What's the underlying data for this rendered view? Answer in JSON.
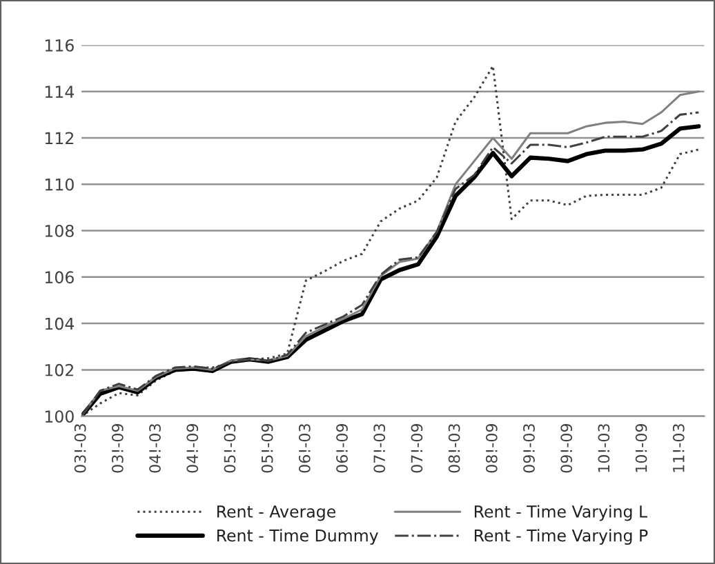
{
  "chart_data": {
    "type": "line",
    "categories": [
      "03!-03",
      null,
      "03!-09",
      null,
      "04!-03",
      null,
      "04!-09",
      null,
      "05!-03",
      null,
      "05!-09",
      null,
      "06!-03",
      null,
      "06!-09",
      null,
      "07!-03",
      null,
      "07!-09",
      null,
      "08!-03",
      null,
      "08!-09",
      null,
      "09!-03",
      null,
      "09!-09",
      null,
      "10!-03",
      null,
      "10!-09",
      null,
      "11!-03",
      null
    ],
    "series": [
      {
        "name": "Rent - Average",
        "color": "#404040",
        "line_style": "dotted",
        "values": [
          100,
          100.55,
          101.0,
          100.9,
          101.55,
          101.95,
          102.1,
          102.1,
          102.3,
          102.45,
          102.5,
          102.7,
          105.85,
          106.25,
          106.7,
          107.0,
          108.4,
          108.95,
          109.3,
          110.3,
          112.7,
          113.75,
          115.1,
          108.5,
          109.3,
          109.3,
          109.1,
          109.5,
          109.55,
          109.55,
          109.55,
          109.85,
          111.3,
          111.5
        ]
      },
      {
        "name": "Rent - Time Dummy",
        "color": "#000000",
        "line_style": "solid",
        "values": [
          100,
          100.97,
          101.25,
          101.03,
          101.65,
          102.0,
          102.05,
          101.95,
          102.35,
          102.45,
          102.35,
          102.55,
          103.3,
          103.7,
          104.1,
          104.4,
          105.9,
          106.3,
          106.55,
          107.75,
          109.5,
          110.3,
          111.35,
          110.35,
          111.15,
          111.1,
          111.0,
          111.3,
          111.45,
          111.45,
          111.5,
          111.75,
          112.4,
          112.5
        ]
      },
      {
        "name": "Rent - Time Varying L",
        "color": "#808080",
        "line_style": "solid",
        "values": [
          100,
          101.1,
          101.3,
          101.1,
          101.7,
          102.05,
          102.1,
          102.0,
          102.4,
          102.45,
          102.4,
          102.6,
          103.45,
          103.85,
          104.2,
          104.6,
          106.05,
          106.65,
          106.8,
          107.95,
          110.0,
          111.0,
          112.0,
          111.1,
          112.2,
          112.2,
          112.2,
          112.5,
          112.65,
          112.7,
          112.6,
          113.1,
          113.85,
          114.0
        ]
      },
      {
        "name": "Rent - Time Varying P",
        "color": "#404040",
        "line_style": "dashdot",
        "values": [
          100,
          101.1,
          101.4,
          101.15,
          101.75,
          102.1,
          102.15,
          102.05,
          102.35,
          102.45,
          102.4,
          102.65,
          103.6,
          103.95,
          104.3,
          104.8,
          106.1,
          106.75,
          106.85,
          107.95,
          109.8,
          110.4,
          111.6,
          110.9,
          111.7,
          111.7,
          111.6,
          111.8,
          112.05,
          112.05,
          112.05,
          112.3,
          113.0,
          113.1
        ]
      }
    ],
    "ylim": [
      100,
      116
    ],
    "yticks": [
      100,
      102,
      104,
      106,
      108,
      110,
      112,
      114,
      116
    ],
    "grid": "y",
    "legend": "bottom",
    "marker": "none"
  }
}
